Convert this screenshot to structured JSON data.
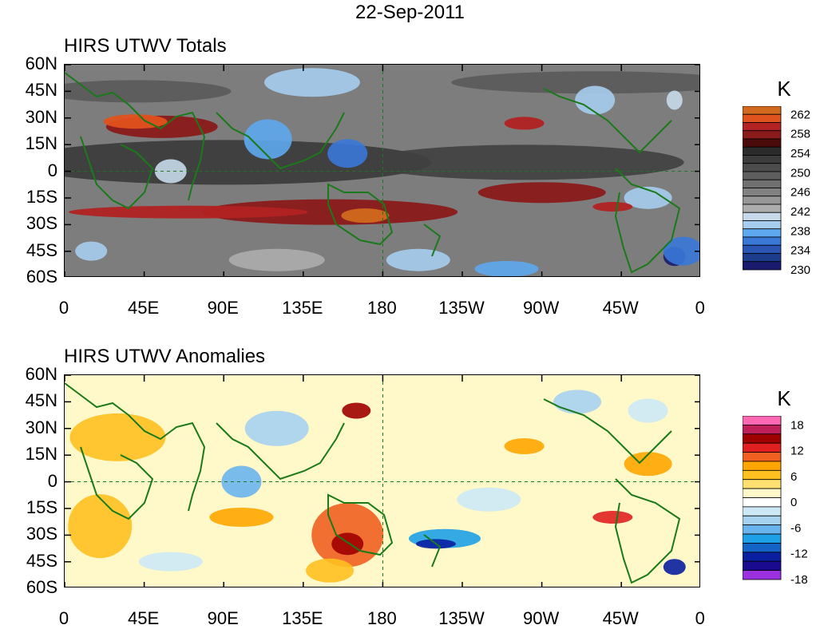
{
  "figure": {
    "date_title": "22-Sep-2011"
  },
  "panels": [
    {
      "title": "HIRS UTWV Totals",
      "colorbar_unit": "K",
      "colorbar_labels": [
        "262",
        "258",
        "254",
        "250",
        "246",
        "242",
        "238",
        "234",
        "230"
      ],
      "colorbar_colors": [
        "#d2691e",
        "#e0521e",
        "#b22222",
        "#8b1a1a",
        "#4a0a0a",
        "#2b2b2b",
        "#3c3c3c",
        "#4d4d4d",
        "#5e5e5e",
        "#707070",
        "#828282",
        "#979797",
        "#adadad",
        "#c6d9ea",
        "#a6cdef",
        "#5ea8ef",
        "#3a78d8",
        "#2a55b5",
        "#1c3c8c",
        "#1a1a6e"
      ]
    },
    {
      "title": "HIRS UTWV Anomalies",
      "colorbar_unit": "K",
      "colorbar_labels": [
        "18",
        "12",
        "6",
        "0",
        "-6",
        "-12",
        "-18"
      ],
      "colorbar_colors": [
        "#ff69b4",
        "#c0205a",
        "#a00000",
        "#e02020",
        "#f06020",
        "#ffa500",
        "#ffc020",
        "#ffe070",
        "#fff8c8",
        "#ffffff",
        "#cde8f5",
        "#a6d2f0",
        "#6ab4ee",
        "#1ea0e6",
        "#1464c8",
        "#0a1ea0",
        "#1a0a90",
        "#9a30e0"
      ]
    }
  ],
  "axes": {
    "lat_labels": [
      "60N",
      "45N",
      "30N",
      "15N",
      "0",
      "15S",
      "30S",
      "45S",
      "60S"
    ],
    "lon_labels": [
      "0",
      "45E",
      "90E",
      "135E",
      "180",
      "135W",
      "90W",
      "45W",
      "0"
    ]
  },
  "map": {
    "projection": "cylindrical equidistant",
    "lon_range": [
      0,
      360
    ],
    "lat_range": [
      -60,
      60
    ],
    "coastline_color": "#1a7a1a"
  }
}
